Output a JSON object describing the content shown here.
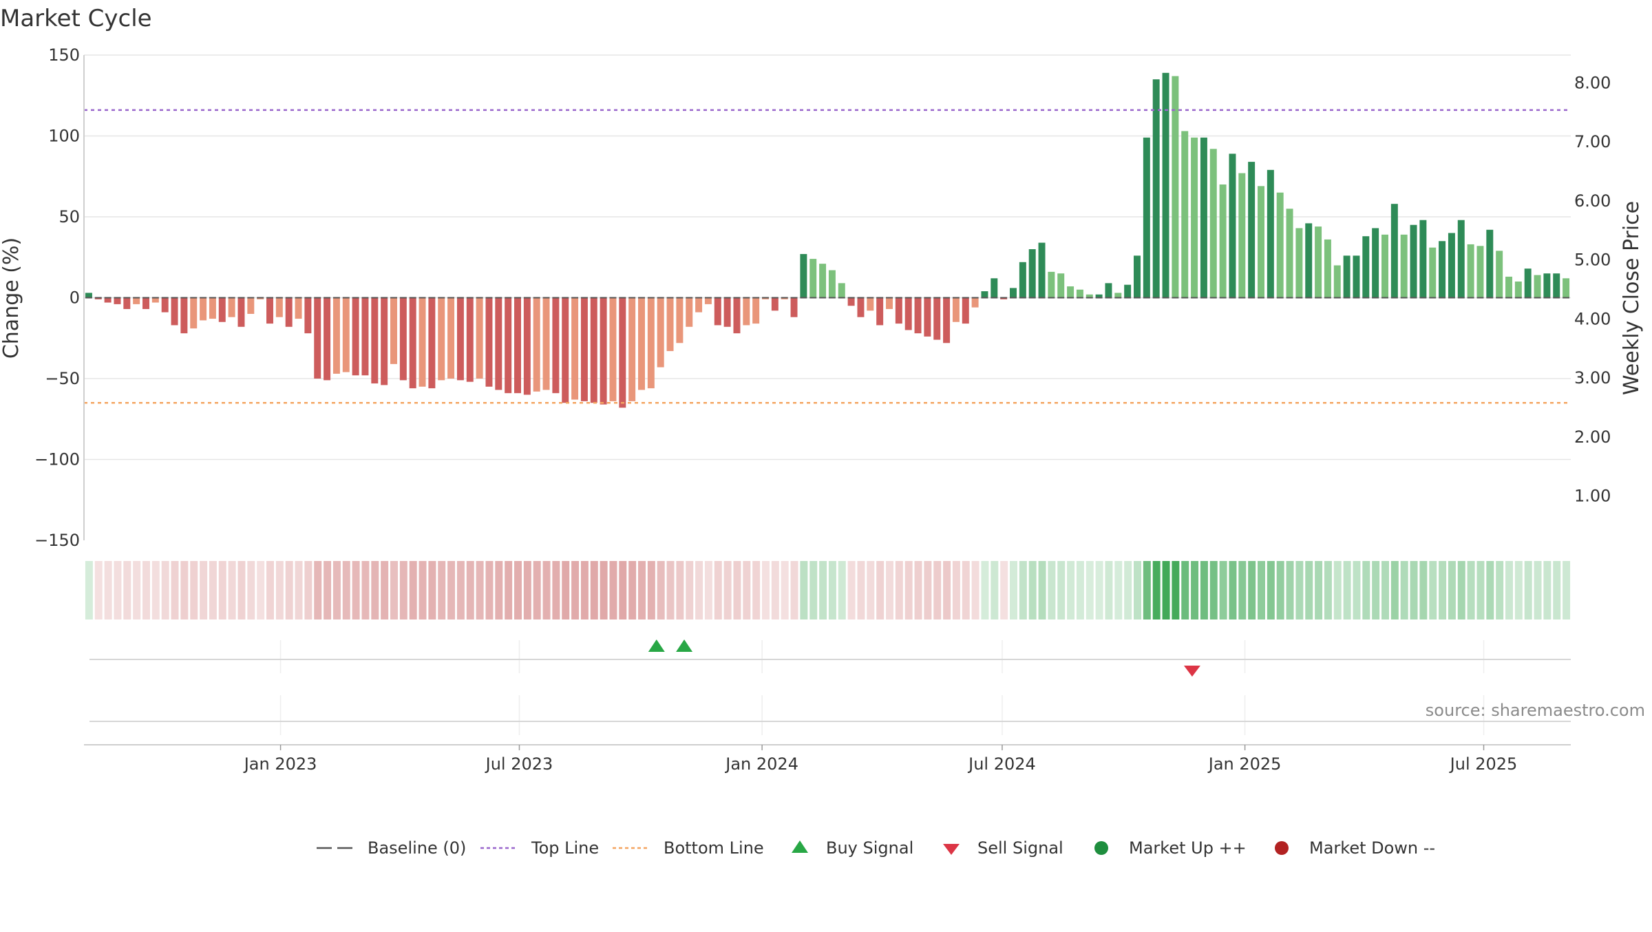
{
  "title": "Market Cycle",
  "source": "source: sharemaestro.com",
  "colors": {
    "strong_up": "#2e8b57",
    "up": "#7cc17c",
    "strong_down": "#cd5c5c",
    "down": "#e9967a",
    "top_line": "#9966cc",
    "bottom_line": "#f4a460",
    "baseline": "#555555",
    "buy": "#28a745",
    "sell": "#dc3545",
    "market_up": "#1e8e3e",
    "market_down": "#b22222"
  },
  "chart_data": {
    "type": "bar",
    "title": "Market Cycle",
    "ylabel_left": "Change (%)",
    "ylabel_right": "Weekly Close Price",
    "ylim_left": [
      -150,
      150
    ],
    "left_ticks": [
      "150",
      "100",
      "50",
      "0",
      "−50",
      "−100",
      "−150"
    ],
    "left_tick_values": [
      150,
      100,
      50,
      0,
      -50,
      -100,
      -150
    ],
    "right_ticks": [
      "8.00",
      "7.00",
      "6.00",
      "5.00",
      "4.00",
      "3.00",
      "2.00",
      "1.00"
    ],
    "right_tick_values": [
      8,
      7,
      6,
      5,
      4,
      3,
      2,
      1
    ],
    "ylim_right": [
      0.25,
      8.47
    ],
    "x_start": "2022-08-05",
    "x_end": "2025-09-05",
    "x_ticks": [
      "Jan 2023",
      "Jul 2023",
      "Jan 2024",
      "Jul 2024",
      "Jan 2025",
      "Jul 2025"
    ],
    "x_tick_dates": [
      "2023-01-01",
      "2023-07-01",
      "2024-01-01",
      "2024-07-01",
      "2025-01-01",
      "2025-07-01"
    ],
    "top_line": 116,
    "bottom_line": -65,
    "baseline": 0,
    "values": [
      3,
      -1,
      -3,
      -4,
      -7,
      -4,
      -7,
      -3,
      -9,
      -17,
      -22,
      -19,
      -14,
      -13,
      -15,
      -12,
      -18,
      -10,
      -1,
      -16,
      -12,
      -18,
      -13,
      -22,
      -50,
      -51,
      -47,
      -46,
      -48,
      -48,
      -53,
      -54,
      -41,
      -51,
      -56,
      -55,
      -56,
      -51,
      -50,
      -51,
      -52,
      -50,
      -55,
      -57,
      -59,
      -59,
      -60,
      -58,
      -57,
      -59,
      -65,
      -63,
      -64,
      -65,
      -66,
      -64,
      -68,
      -64,
      -57,
      -56,
      -43,
      -33,
      -28,
      -18,
      -9,
      -4,
      -17,
      -18,
      -22,
      -17,
      -16,
      -1,
      -8,
      -1,
      -12,
      27,
      24,
      21,
      17,
      9,
      -5,
      -12,
      -8,
      -17,
      -7,
      -16,
      -20,
      -22,
      -24,
      -26,
      -28,
      -15,
      -16,
      -6,
      4,
      12,
      -1,
      6,
      22,
      30,
      34,
      16,
      15,
      7,
      5,
      2,
      2,
      9,
      3,
      8,
      26,
      99,
      135,
      139,
      137,
      103,
      99,
      99,
      92,
      70,
      89,
      77,
      84,
      69,
      79,
      65,
      55,
      43,
      46,
      44,
      36,
      20,
      26,
      26,
      38,
      43,
      39,
      58,
      39,
      45,
      48,
      31,
      35,
      40,
      48,
      33,
      32,
      42,
      29,
      13,
      10,
      18,
      14,
      15,
      15,
      12
    ],
    "categories_text": [],
    "signals": [
      {
        "type": "buy",
        "date": "2023-10-13"
      },
      {
        "type": "buy",
        "date": "2023-11-03"
      },
      {
        "type": "sell",
        "date": "2024-11-22"
      }
    ],
    "legend": [
      {
        "label": "Baseline (0)",
        "symbol": "dash"
      },
      {
        "label": "Top Line",
        "symbol": "dot-purple"
      },
      {
        "label": "Bottom Line",
        "symbol": "dot-orange"
      },
      {
        "label": "Buy Signal",
        "symbol": "triangle-up"
      },
      {
        "label": "Sell Signal",
        "symbol": "triangle-down"
      },
      {
        "label": "Market Up ++",
        "symbol": "circle-green"
      },
      {
        "label": "Market Down --",
        "symbol": "circle-red"
      }
    ],
    "legend_position": "bottom-center",
    "grid": true
  }
}
